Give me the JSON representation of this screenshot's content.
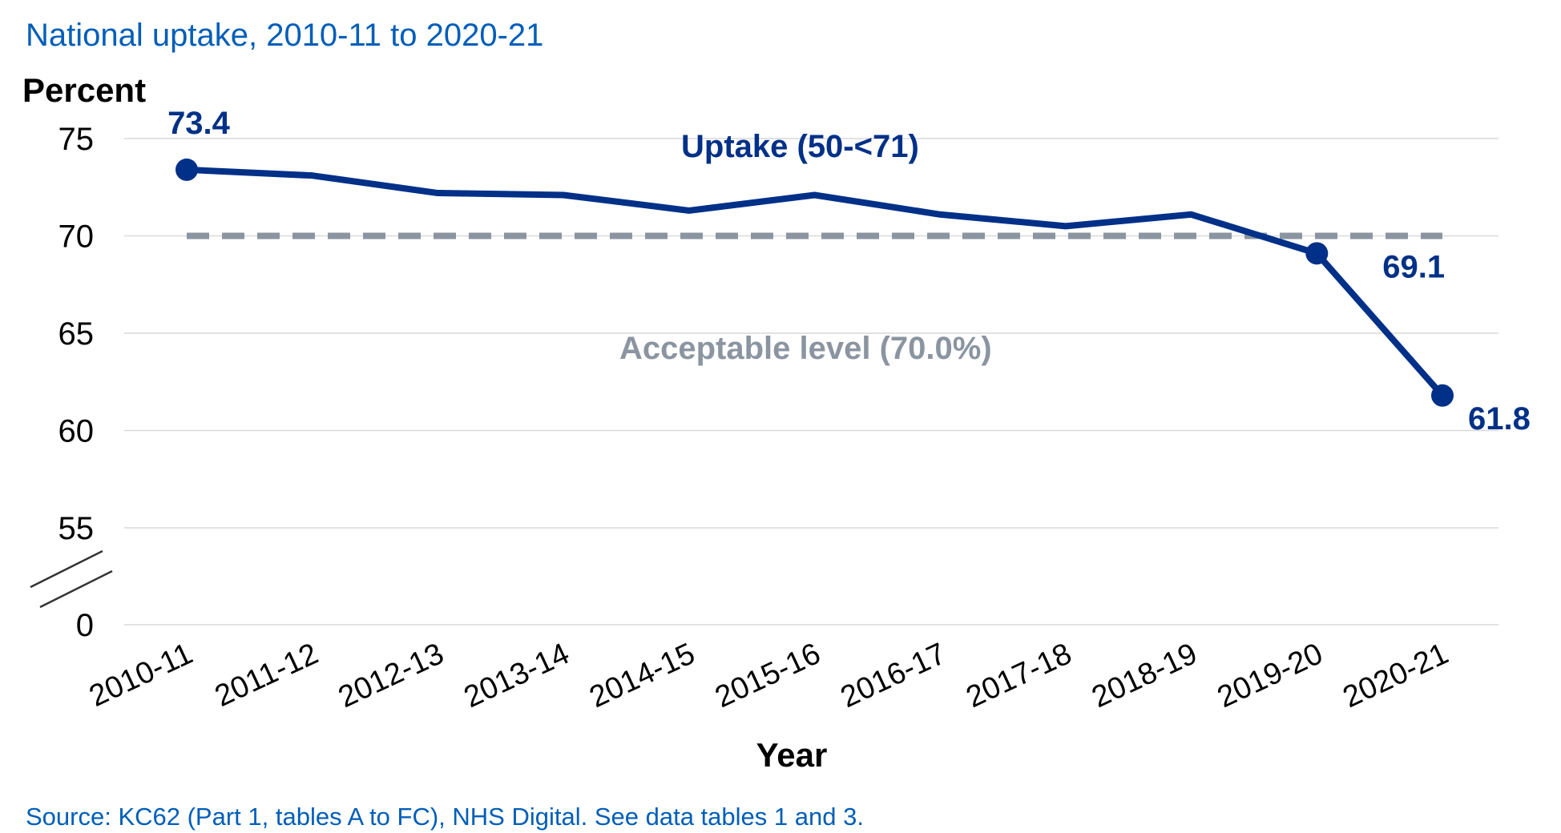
{
  "title": "National uptake, 2010-11 to 2020-21",
  "source": "Source: KC62 (Part 1, tables A to FC), NHS Digital. See data tables 1 and 3.",
  "colors": {
    "title": "#005eb8",
    "series": "#003087",
    "reference": "#8b95a1",
    "grid": "#d9d9d9",
    "axis_break": "#333333"
  },
  "chart_data": {
    "type": "line",
    "title": "National uptake, 2010-11 to 2020-21",
    "xlabel": "Year",
    "ylabel": "Percent",
    "categories": [
      "2010-11",
      "2011-12",
      "2012-13",
      "2013-14",
      "2014-15",
      "2015-16",
      "2016-17",
      "2017-18",
      "2018-19",
      "2019-20",
      "2020-21"
    ],
    "series": [
      {
        "name": "Uptake (50-<71)",
        "values": [
          73.4,
          73.1,
          72.2,
          72.1,
          71.3,
          72.1,
          71.1,
          70.5,
          71.1,
          69.1,
          61.8
        ],
        "color": "#003087"
      }
    ],
    "reference_line": {
      "label": "Acceptable level (70.0%)",
      "value": 70.0,
      "style": "dashed",
      "color": "#8b95a1"
    },
    "data_labels": [
      {
        "category": "2010-11",
        "text": "73.4"
      },
      {
        "category": "2019-20",
        "text": "69.1"
      },
      {
        "category": "2020-21",
        "text": "61.8"
      }
    ],
    "yticks": [
      "75",
      "70",
      "65",
      "60",
      "55",
      "0"
    ],
    "y_axis_break": true,
    "ylim": [
      55,
      75
    ],
    "grid": true
  }
}
